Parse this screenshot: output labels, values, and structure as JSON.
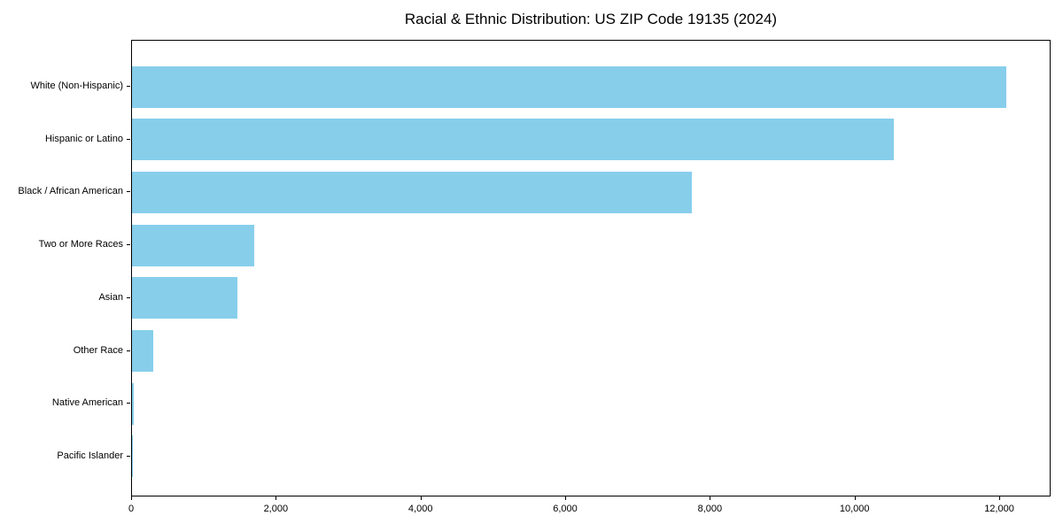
{
  "chart_data": {
    "type": "bar",
    "orientation": "horizontal",
    "title": "Racial & Ethnic Distribution: US ZIP Code 19135 (2024)",
    "categories": [
      "White (Non-Hispanic)",
      "Hispanic or Latino",
      "Black / African American",
      "Two or More Races",
      "Asian",
      "Other Race",
      "Native American",
      "Pacific Islander"
    ],
    "values": [
      12090,
      10530,
      7740,
      1695,
      1460,
      295,
      20,
      10
    ],
    "xlabel": "",
    "ylabel": "",
    "xlim": [
      0,
      12710
    ],
    "xticks": [
      0,
      2000,
      4000,
      6000,
      8000,
      10000,
      12000
    ],
    "xtick_labels": [
      "0",
      "2,000",
      "4,000",
      "6,000",
      "8,000",
      "10,000",
      "12,000"
    ],
    "bar_color": "#87CEEB",
    "background_color": "#FFFFFF",
    "spine_color": "#000000",
    "grid": false,
    "legend": "none"
  }
}
